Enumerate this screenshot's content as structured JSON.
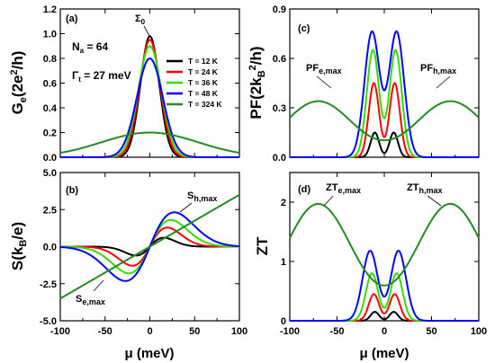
{
  "chart_data": [
    {
      "panel": "(a)",
      "type": "line",
      "ylabel": "G_e(2e^2/h)",
      "ylabel_parts": {
        "main": "G",
        "sub": "e",
        "open": "(2e",
        "sup": "2",
        "close": "/h)"
      },
      "xlim": [
        -100,
        100
      ],
      "ylim": [
        0.0,
        1.2
      ],
      "xticks": [
        -100,
        -50,
        0,
        50,
        100
      ],
      "yticks": [
        0.0,
        0.2,
        0.4,
        0.6,
        0.8,
        1.0,
        1.2
      ],
      "tick_labels": [
        "0.0",
        "0.2",
        "0.4",
        "0.6",
        "0.8",
        "1.0",
        "1.2"
      ],
      "params": {
        "na_label": "N",
        "na_sub": "a",
        "na_value": " = 64",
        "gamma_label": "Γ",
        "gamma_sub": "t",
        "gamma_value": " = 27 meV"
      },
      "annotations": [
        {
          "text": "Σ",
          "sub": "0"
        }
      ],
      "legend_position": "right",
      "series": [
        {
          "name": "T = 12 K",
          "color": "#000000",
          "peak": 0.98
        },
        {
          "name": "T = 24 K",
          "color": "#ff0000",
          "peak": 0.95
        },
        {
          "name": "T = 36 K",
          "color": "#33dd00",
          "peak": 0.9
        },
        {
          "name": "T = 48 K",
          "color": "#0000ff",
          "peak": 0.8
        },
        {
          "name": "T = 324 K",
          "color": "#228B22",
          "peak": 0.2
        }
      ]
    },
    {
      "panel": "(b)",
      "type": "line",
      "ylabel": "S(k_B/e)",
      "ylabel_parts": {
        "open": "S(k",
        "sub": "B",
        "close": "/e)"
      },
      "xlim": [
        -100,
        100
      ],
      "ylim": [
        -5.0,
        5.0
      ],
      "xticks": [
        -100,
        -50,
        0,
        50,
        100
      ],
      "yticks": [
        -5.0,
        -2.5,
        0.0,
        2.5,
        5.0
      ],
      "tick_labels": [
        "-5.0",
        "-2.5",
        "0.0",
        "2.5",
        "5.0"
      ],
      "annotations": [
        {
          "text": "S",
          "sub": "h,max"
        },
        {
          "text": "S",
          "sub": "e,max"
        }
      ],
      "series": [
        {
          "name": "T = 12 K",
          "color": "#000000",
          "max": 0.7,
          "mu_max": 16
        },
        {
          "name": "T = 24 K",
          "color": "#ff0000",
          "max": 1.5,
          "mu_max": 20
        },
        {
          "name": "T = 36 K",
          "color": "#33dd00",
          "max": 2.1,
          "mu_max": 24
        },
        {
          "name": "T = 48 K",
          "color": "#0000ff",
          "max": 2.7,
          "mu_max": 28
        },
        {
          "name": "T = 324 K",
          "color": "#228B22",
          "slope": 0.035
        }
      ]
    },
    {
      "panel": "(c)",
      "type": "line",
      "ylabel": "PF(2k_B^2/h)",
      "ylabel_parts": {
        "open": "PF(2k",
        "sub": "B",
        "sup": "2",
        "close": "/h)"
      },
      "xlim": [
        -100,
        100
      ],
      "ylim": [
        0.0,
        0.9
      ],
      "xticks": [
        -100,
        -50,
        0,
        50,
        100
      ],
      "yticks": [
        0.0,
        0.3,
        0.6,
        0.9
      ],
      "tick_labels": [
        "0.0",
        "0.3",
        "0.6",
        "0.9"
      ],
      "annotations": [
        {
          "text": "PF",
          "sub": "e,max"
        },
        {
          "text": "PF",
          "sub": "h,max"
        }
      ],
      "series": [
        {
          "name": "T = 12 K",
          "color": "#000000",
          "peak": 0.15,
          "mu_peak": 10
        },
        {
          "name": "T = 24 K",
          "color": "#ff0000",
          "peak": 0.45,
          "mu_peak": 11
        },
        {
          "name": "T = 36 K",
          "color": "#33dd00",
          "peak": 0.65,
          "mu_peak": 12
        },
        {
          "name": "T = 48 K",
          "color": "#0000ff",
          "peak": 0.76,
          "mu_peak": 13
        },
        {
          "name": "T = 324 K",
          "color": "#228B22",
          "peak": 0.34,
          "mu_peak": 70
        }
      ]
    },
    {
      "panel": "(d)",
      "type": "line",
      "ylabel": "ZT",
      "xlabel": "μ (meV)",
      "xlim": [
        -100,
        100
      ],
      "ylim": [
        0,
        2.5
      ],
      "xticks": [
        -100,
        -50,
        0,
        50,
        100
      ],
      "yticks": [
        0,
        1,
        2
      ],
      "tick_labels": [
        "0",
        "1",
        "2"
      ],
      "annotations": [
        {
          "text": "ZT",
          "sub": "e,max"
        },
        {
          "text": "ZT",
          "sub": "h,max"
        }
      ],
      "series": [
        {
          "name": "T = 12 K",
          "color": "#000000",
          "peak": 0.15,
          "mu_peak": 10
        },
        {
          "name": "T = 24 K",
          "color": "#ff0000",
          "peak": 0.45,
          "mu_peak": 11
        },
        {
          "name": "T = 36 K",
          "color": "#33dd00",
          "peak": 0.8,
          "mu_peak": 13
        },
        {
          "name": "T = 48 K",
          "color": "#0000ff",
          "peak": 1.18,
          "mu_peak": 15
        },
        {
          "name": "T = 324 K",
          "color": "#228B22",
          "peak": 1.97,
          "mu_peak": 70
        }
      ]
    }
  ],
  "xlabel": "μ (meV)",
  "x_tick_labels": [
    "-100",
    "-50",
    "0",
    "50",
    "100"
  ]
}
